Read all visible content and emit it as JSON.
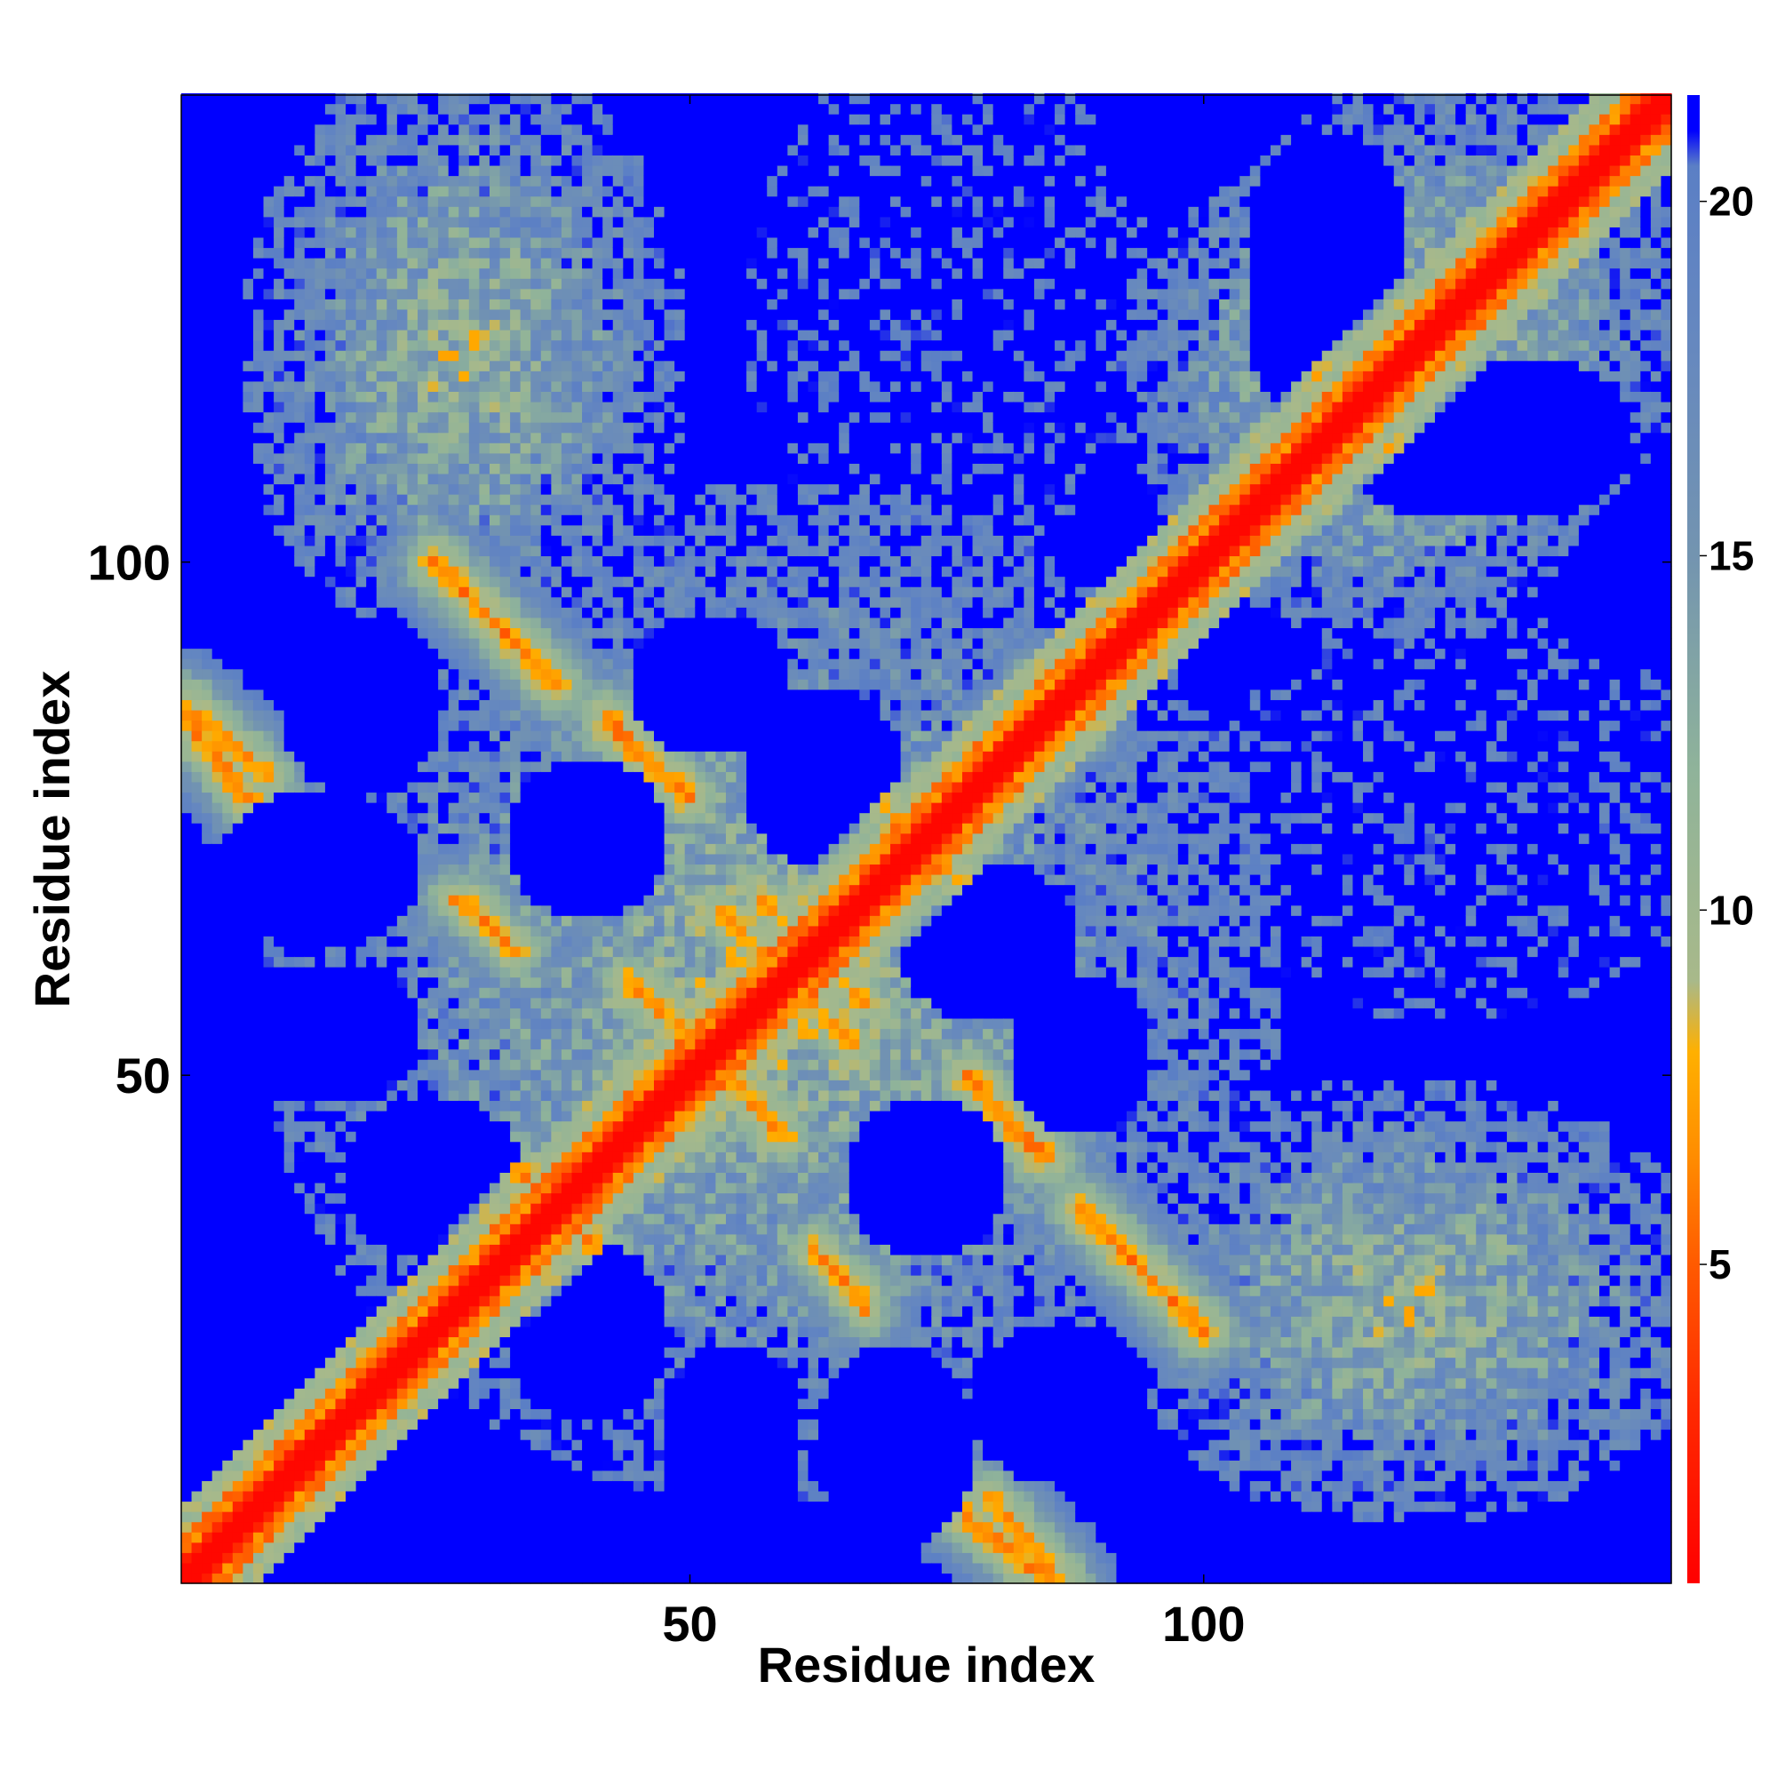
{
  "chart_data": {
    "type": "heatmap",
    "xlabel": "Residue index",
    "ylabel": "Residue index",
    "n_residues": 145,
    "xlim": [
      0.5,
      145.5
    ],
    "ylim": [
      0.5,
      145.5
    ],
    "x_ticks": [
      50,
      100
    ],
    "y_ticks": [
      50,
      100
    ],
    "colorbar": {
      "ticks": [
        5,
        10,
        15,
        20
      ],
      "range": [
        0.5,
        21.5
      ],
      "scale": [
        {
          "value": 0,
          "color": "#ff0000"
        },
        {
          "value": 3,
          "color": "#ff2a00"
        },
        {
          "value": 5,
          "color": "#ff5a00"
        },
        {
          "value": 6.5,
          "color": "#ff8c00"
        },
        {
          "value": 8,
          "color": "#ffb000"
        },
        {
          "value": 9,
          "color": "#a8b98a"
        },
        {
          "value": 12,
          "color": "#8fb39a"
        },
        {
          "value": 15,
          "color": "#7394b0"
        },
        {
          "value": 18,
          "color": "#6688bf"
        },
        {
          "value": 20.5,
          "color": "#5b7fc5"
        },
        {
          "value": 21,
          "color": "#0000ff"
        }
      ]
    },
    "contact_bands": [
      {
        "from": [
          26,
          99
        ],
        "to": [
          37,
          88
        ],
        "distance": 6
      },
      {
        "from": [
          42,
          84
        ],
        "to": [
          50,
          77
        ],
        "distance": 6
      },
      {
        "from": [
          1,
          86
        ],
        "to": [
          9,
          79
        ],
        "distance": 6.5
      },
      {
        "from": [
          28,
          67
        ],
        "to": [
          33,
          62
        ],
        "distance": 6.5
      },
      {
        "from": [
          44,
          59
        ],
        "to": [
          52,
          52
        ],
        "distance": 6.5
      },
      {
        "from": [
          32,
          42
        ],
        "to": [
          41,
          33
        ],
        "distance": 6.5
      },
      {
        "from": [
          63,
          32
        ],
        "to": [
          67,
          27
        ],
        "distance": 7
      },
      {
        "from": [
          77,
          50
        ],
        "to": [
          85,
          42
        ],
        "distance": 6.5
      },
      {
        "from": [
          89,
          36
        ],
        "to": [
          100,
          25
        ],
        "distance": 6
      },
      {
        "from": [
          77,
          7
        ],
        "to": [
          86,
          0
        ],
        "distance": 6
      },
      {
        "from": [
          57,
          67
        ],
        "to": [
          62,
          62
        ],
        "distance": 7
      },
      {
        "from": [
          62,
          57
        ],
        "to": [
          66,
          53
        ],
        "distance": 7
      },
      {
        "from": [
          84,
          88
        ],
        "to": [
          88,
          84
        ],
        "distance": 7
      },
      {
        "from": [
          67,
          78
        ],
        "to": [
          74,
          72
        ],
        "distance": 7
      }
    ],
    "compact_regions": [
      {
        "center": [
          28,
          120
        ],
        "radius": [
          22,
          30
        ]
      },
      {
        "center": [
          120,
          28
        ],
        "radius": [
          30,
          22
        ]
      },
      {
        "center": [
          124,
          124
        ],
        "radius": [
          24,
          24
        ]
      },
      {
        "center": [
          58,
          58
        ],
        "radius": [
          50,
          50
        ]
      },
      {
        "center": [
          118,
          112
        ],
        "radius": [
          22,
          20
        ]
      },
      {
        "center": [
          112,
          118
        ],
        "radius": [
          20,
          22
        ]
      }
    ],
    "sparse_regions": [
      {
        "center": [
          75,
          125
        ],
        "radius": [
          20,
          26
        ]
      },
      {
        "center": [
          125,
          75
        ],
        "radius": [
          26,
          20
        ]
      }
    ],
    "voids": [
      {
        "center": [
          14,
          54
        ],
        "radius": [
          10,
          7
        ]
      },
      {
        "center": [
          54,
          14
        ],
        "radius": [
          7,
          10
        ]
      },
      {
        "center": [
          40,
          73
        ],
        "radius": [
          8,
          8
        ]
      },
      {
        "center": [
          73,
          40
        ],
        "radius": [
          8,
          8
        ]
      },
      {
        "center": [
          40,
          25
        ],
        "radius": [
          8,
          9
        ]
      },
      {
        "center": [
          25,
          40
        ],
        "radius": [
          9,
          8
        ]
      },
      {
        "center": [
          63,
          79
        ],
        "radius": [
          8,
          9
        ]
      },
      {
        "center": [
          79,
          63
        ],
        "radius": [
          9,
          8
        ]
      },
      {
        "center": [
          86,
          18
        ],
        "radius": [
          9,
          8
        ]
      },
      {
        "center": [
          18,
          86
        ],
        "radius": [
          8,
          9
        ]
      },
      {
        "center": [
          14,
          70
        ],
        "radius": [
          10,
          8
        ]
      },
      {
        "center": [
          70,
          14
        ],
        "radius": [
          8,
          10
        ]
      },
      {
        "center": [
          88,
          52
        ],
        "radius": [
          7,
          8
        ]
      },
      {
        "center": [
          52,
          88
        ],
        "radius": [
          8,
          7
        ]
      },
      {
        "center": [
          56,
          58
        ],
        "radius": [
          4,
          4
        ]
      },
      {
        "center": [
          64,
          62
        ],
        "radius": [
          3,
          3
        ]
      },
      {
        "center": [
          110,
          125
        ],
        "radius": [
          6,
          12
        ]
      },
      {
        "center": [
          125,
          110
        ],
        "radius": [
          12,
          6
        ]
      },
      {
        "center": [
          132,
          112
        ],
        "radius": [
          10,
          8
        ]
      },
      {
        "center": [
          112,
          132
        ],
        "radius": [
          8,
          10
        ]
      }
    ]
  }
}
